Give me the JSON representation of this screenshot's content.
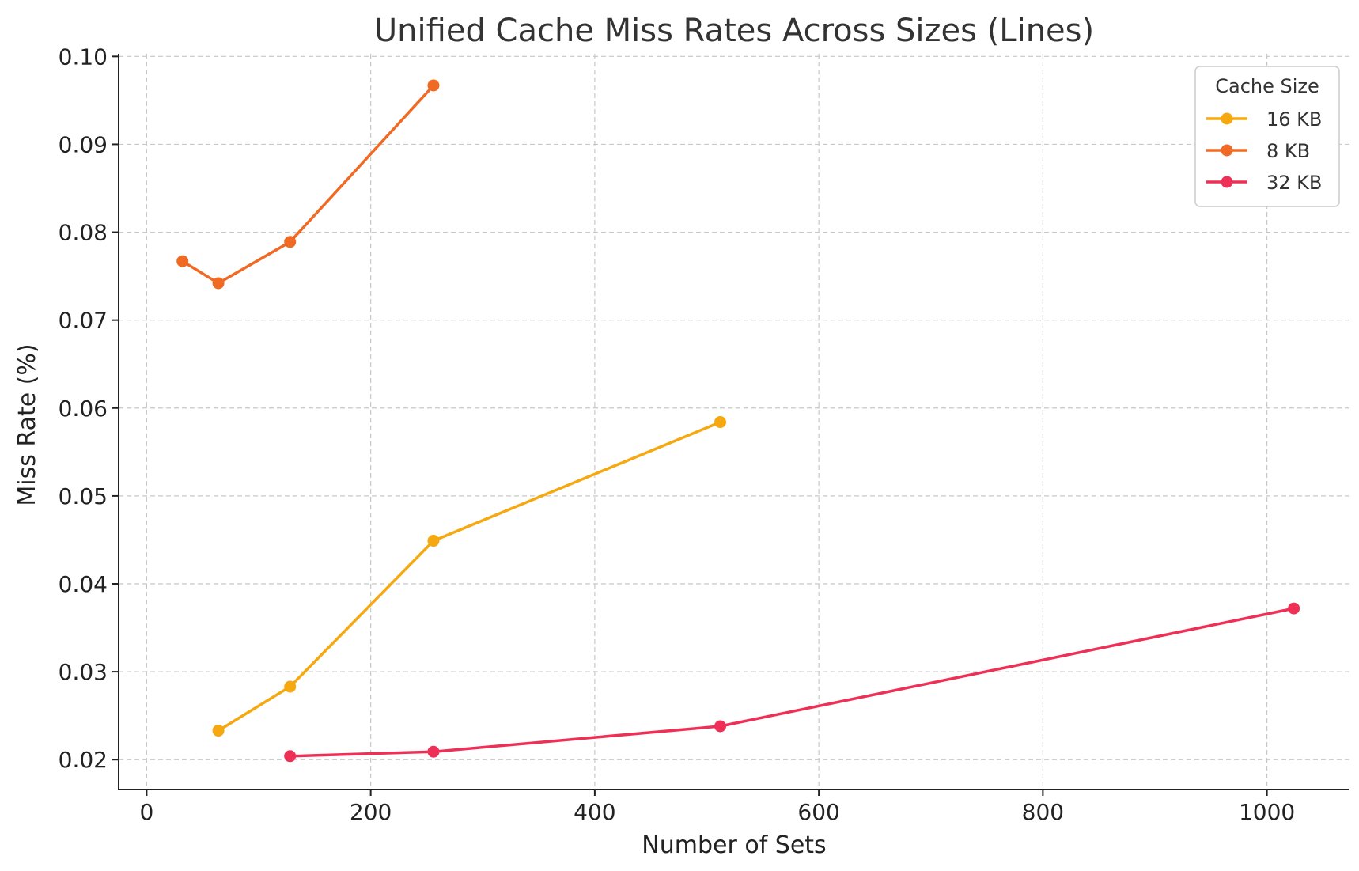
{
  "chart_data": {
    "type": "line",
    "title": "Unified Cache Miss Rates Across Sizes (Lines)",
    "xlabel": "Number of Sets",
    "ylabel": "Miss Rate (%)",
    "xlim": [
      -25,
      1073
    ],
    "ylim": [
      0.0166,
      0.1003
    ],
    "xticks": [
      0,
      200,
      400,
      600,
      800,
      1000
    ],
    "xtick_labels": [
      "0",
      "200",
      "400",
      "600",
      "800",
      "1000"
    ],
    "yticks": [
      0.02,
      0.03,
      0.04,
      0.05,
      0.06,
      0.07,
      0.08,
      0.09,
      0.1
    ],
    "ytick_labels": [
      "0.02",
      "0.03",
      "0.04",
      "0.05",
      "0.06",
      "0.07",
      "0.08",
      "0.09",
      "0.10"
    ],
    "grid": true,
    "legend": {
      "title": "Cache Size",
      "placement": "top-right"
    },
    "series": [
      {
        "name": "16 KB",
        "color": "#F5A80F",
        "x": [
          64,
          128,
          256,
          512
        ],
        "y": [
          0.0233,
          0.0283,
          0.0449,
          0.0584
        ]
      },
      {
        "name": "8 KB",
        "color": "#F06A23",
        "x": [
          32,
          64,
          128,
          256
        ],
        "y": [
          0.0767,
          0.0742,
          0.0789,
          0.0967
        ]
      },
      {
        "name": "32 KB",
        "color": "#EE3057",
        "x": [
          128,
          256,
          512,
          1024
        ],
        "y": [
          0.0204,
          0.0209,
          0.0238,
          0.0372
        ]
      }
    ]
  }
}
